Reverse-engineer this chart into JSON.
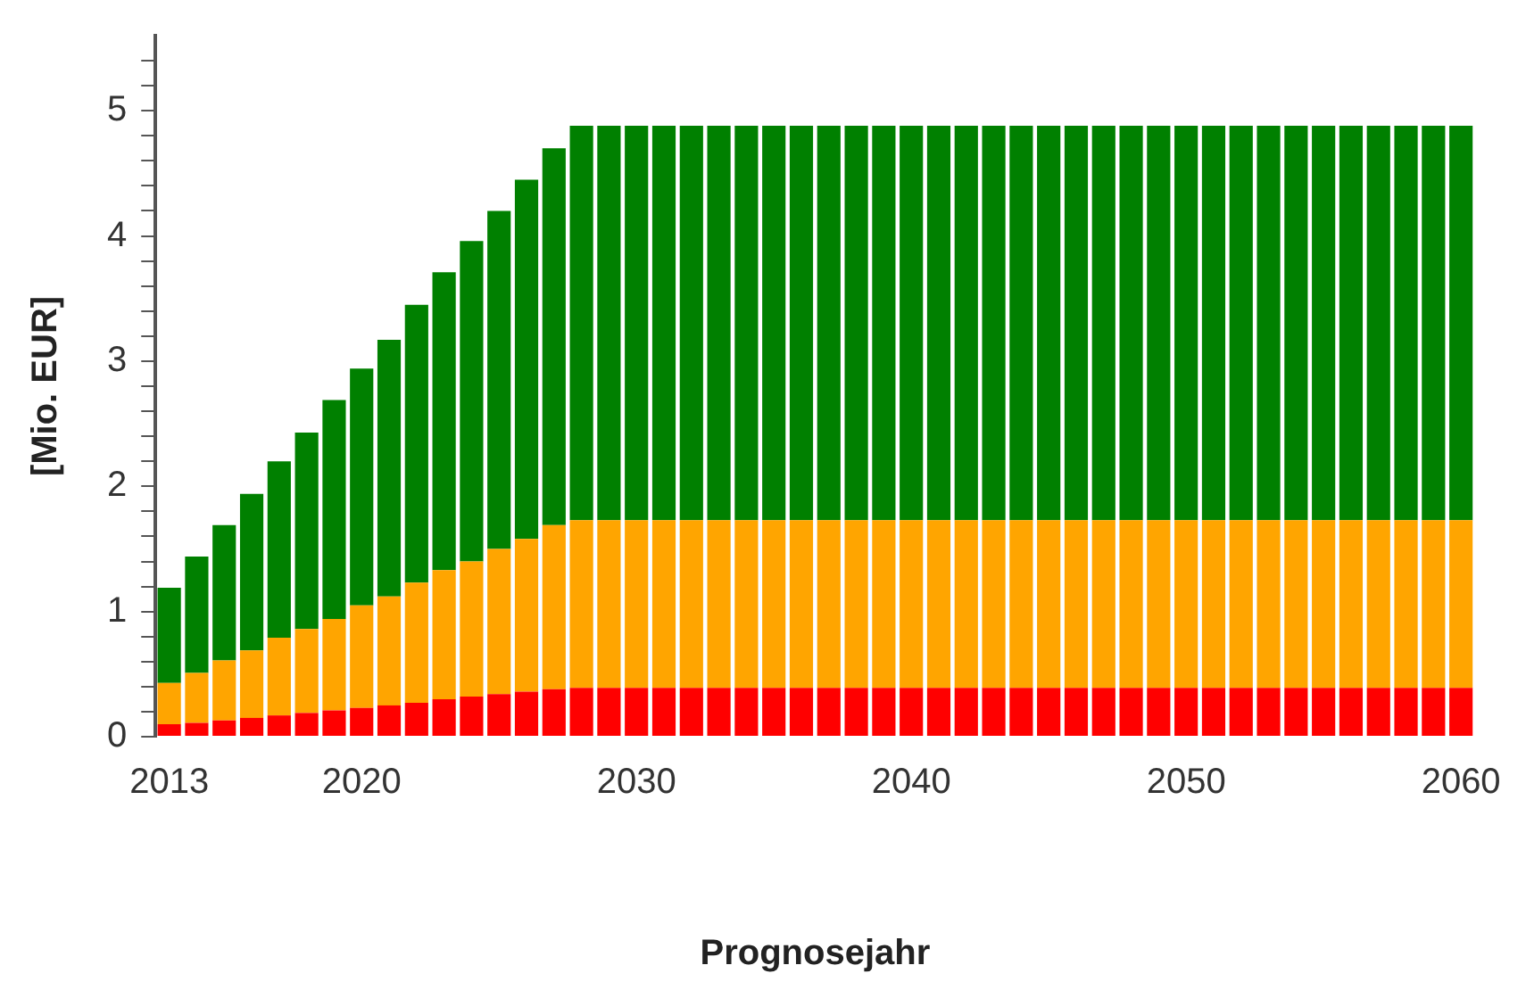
{
  "chart_data": {
    "type": "bar",
    "stacked": true,
    "xlabel": "Prognosejahr",
    "ylabel": "[Mio. EUR]",
    "categories": [
      "2013",
      null,
      null,
      null,
      null,
      null,
      null,
      "2020",
      null,
      null,
      null,
      null,
      null,
      null,
      null,
      null,
      null,
      "2030",
      null,
      null,
      null,
      null,
      null,
      null,
      null,
      null,
      null,
      "2040",
      null,
      null,
      null,
      null,
      null,
      null,
      null,
      null,
      null,
      "2050",
      null,
      null,
      null,
      null,
      null,
      null,
      null,
      null,
      null,
      "2060"
    ],
    "series": [
      {
        "color": "#ff0000",
        "values": [
          0.1,
          0.11,
          0.13,
          0.15,
          0.17,
          0.19,
          0.21,
          0.23,
          0.25,
          0.27,
          0.3,
          0.32,
          0.34,
          0.36,
          0.38,
          0.39,
          0.39,
          0.39,
          0.39,
          0.39,
          0.39,
          0.39,
          0.39,
          0.39,
          0.39,
          0.39,
          0.39,
          0.39,
          0.39,
          0.39,
          0.39,
          0.39,
          0.39,
          0.39,
          0.39,
          0.39,
          0.39,
          0.39,
          0.39,
          0.39,
          0.39,
          0.39,
          0.39,
          0.39,
          0.39,
          0.39,
          0.39,
          0.39
        ]
      },
      {
        "color": "#ffa500",
        "values": [
          0.33,
          0.4,
          0.48,
          0.54,
          0.62,
          0.67,
          0.73,
          0.82,
          0.87,
          0.96,
          1.03,
          1.08,
          1.16,
          1.22,
          1.31,
          1.34,
          1.34,
          1.34,
          1.34,
          1.34,
          1.34,
          1.34,
          1.34,
          1.34,
          1.34,
          1.34,
          1.34,
          1.34,
          1.34,
          1.34,
          1.34,
          1.34,
          1.34,
          1.34,
          1.34,
          1.34,
          1.34,
          1.34,
          1.34,
          1.34,
          1.34,
          1.34,
          1.34,
          1.34,
          1.34,
          1.34,
          1.34,
          1.34
        ]
      },
      {
        "color": "#008000",
        "values": [
          0.76,
          0.93,
          1.08,
          1.25,
          1.41,
          1.57,
          1.75,
          1.89,
          2.05,
          2.22,
          2.38,
          2.56,
          2.7,
          2.87,
          3.01,
          3.15,
          3.15,
          3.15,
          3.15,
          3.15,
          3.15,
          3.15,
          3.15,
          3.15,
          3.15,
          3.15,
          3.15,
          3.15,
          3.15,
          3.15,
          3.15,
          3.15,
          3.15,
          3.15,
          3.15,
          3.15,
          3.15,
          3.15,
          3.15,
          3.15,
          3.15,
          3.15,
          3.15,
          3.15,
          3.15,
          3.15,
          3.15,
          3.15
        ]
      }
    ],
    "ylim": [
      0,
      5.6
    ],
    "yticks": [
      0,
      {
        "value": 0.2,
        "label": null
      },
      {
        "value": 0.4,
        "label": null
      },
      {
        "value": 0.6,
        "label": null
      },
      {
        "value": 0.8,
        "label": null
      },
      1,
      {
        "value": 1.2,
        "label": null
      },
      {
        "value": 1.4,
        "label": null
      },
      {
        "value": 1.6,
        "label": null
      },
      {
        "value": 1.8,
        "label": null
      },
      2,
      {
        "value": 2.2,
        "label": null
      },
      {
        "value": 2.4,
        "label": null
      },
      {
        "value": 2.6,
        "label": null
      },
      {
        "value": 2.8,
        "label": null
      },
      3,
      {
        "value": 3.2,
        "label": null
      },
      {
        "value": 3.4,
        "label": null
      },
      {
        "value": 3.6,
        "label": null
      },
      {
        "value": 3.8,
        "label": null
      },
      4,
      {
        "value": 4.2,
        "label": null
      },
      {
        "value": 4.4,
        "label": null
      },
      {
        "value": 4.6,
        "label": null
      },
      {
        "value": 4.8,
        "label": null
      },
      5,
      {
        "value": 5.2,
        "label": null
      },
      {
        "value": 5.4,
        "label": null
      }
    ],
    "grid": false,
    "legend": false
  }
}
